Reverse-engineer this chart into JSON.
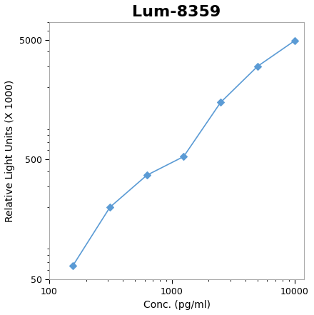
{
  "title": "Lum-8359",
  "xlabel": "Conc. (pg/ml)",
  "ylabel": "Relative Light Units (X 1000)",
  "x_data": [
    156,
    313,
    625,
    1250,
    2500,
    5000,
    10000
  ],
  "y_data": [
    65,
    200,
    370,
    530,
    1500,
    3000,
    4900
  ],
  "line_color": "#5b9bd5",
  "marker_color": "#5b9bd5",
  "marker": "D",
  "marker_size": 5,
  "xlim": [
    100,
    12000
  ],
  "ylim": [
    50,
    7000
  ],
  "x_ticks": [
    100,
    1000,
    10000
  ],
  "y_ticks": [
    50,
    500,
    5000
  ],
  "title_fontsize": 16,
  "label_fontsize": 10,
  "tick_fontsize": 9,
  "background_color": "#ffffff",
  "outer_bg": "#ffffff",
  "chart_border_color": "#aaaaaa",
  "figsize": [
    4.4,
    4.41
  ],
  "dpi": 100
}
